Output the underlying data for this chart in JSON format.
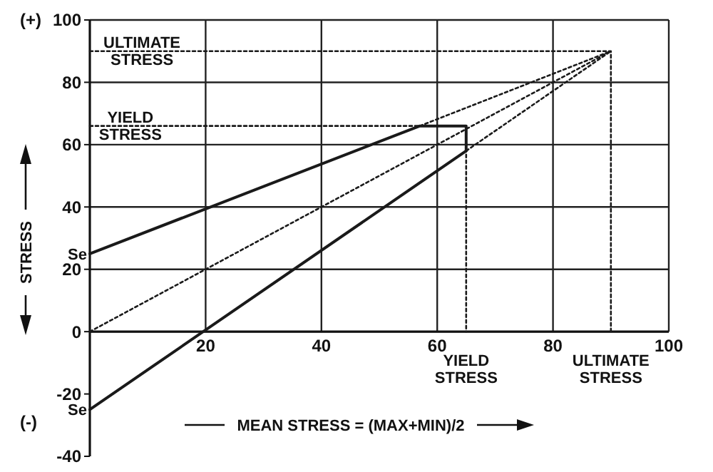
{
  "chart_data": {
    "type": "line",
    "xlabel": "MEAN STRESS = (MAX+MIN)/2",
    "ylabel": "STRESS",
    "xlim": [
      0,
      100
    ],
    "ylim": [
      -40,
      100
    ],
    "xticks": [
      20,
      40,
      60,
      80,
      100
    ],
    "yticks": [
      -40,
      -20,
      0,
      20,
      40,
      60,
      80,
      100
    ],
    "grid": true,
    "series": [
      {
        "color": "#1a1a1a",
        "x": [
          0,
          57,
          65,
          65
        ],
        "values": [
          25,
          66,
          66,
          58
        ],
        "line_style": "solid"
      },
      {
        "color": "#1a1a1a",
        "x": [
          0,
          65
        ],
        "values": [
          -25,
          58
        ],
        "line_style": "solid"
      },
      {
        "color": "#1a1a1a",
        "x": [
          0,
          90
        ],
        "values": [
          0,
          90
        ],
        "line_style": "dotted"
      },
      {
        "color": "#1a1a1a",
        "x": [
          57,
          90
        ],
        "values": [
          66,
          90
        ],
        "line_style": "dotted"
      },
      {
        "color": "#1a1a1a",
        "x": [
          65,
          90
        ],
        "values": [
          58,
          90
        ],
        "line_style": "dotted"
      },
      {
        "color": "#1a1a1a",
        "x": [
          0,
          90,
          90
        ],
        "values": [
          90,
          90,
          0
        ],
        "line_style": "dotted"
      },
      {
        "color": "#1a1a1a",
        "x": [
          0,
          65,
          65
        ],
        "values": [
          66,
          66,
          0
        ],
        "line_style": "dotted"
      }
    ],
    "annotations": [
      {
        "text": "ULTIMATE STRESS",
        "x": 9,
        "y": 90
      },
      {
        "text": "YIELD STRESS",
        "x": 7,
        "y": 66
      },
      {
        "text": "Se",
        "x": 0,
        "y": 25
      },
      {
        "text": "Se",
        "x": 0,
        "y": -25
      },
      {
        "text": "YIELD STRESS",
        "x": 65,
        "y": 0
      },
      {
        "text": "ULTIMATE STRESS",
        "x": 90,
        "y": 0
      },
      "(+)",
      "(-)"
    ]
  }
}
